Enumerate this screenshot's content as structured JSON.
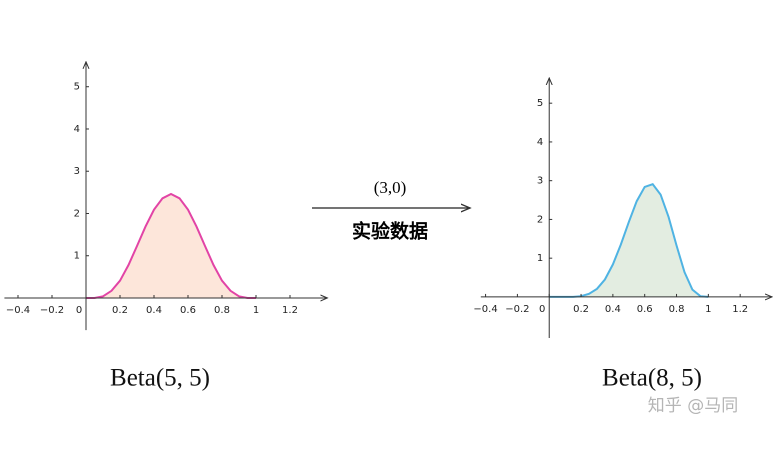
{
  "chart_data": [
    {
      "type": "line",
      "title": "Beta(5, 5)",
      "x": [
        0,
        0.05,
        0.1,
        0.15,
        0.2,
        0.25,
        0.3,
        0.35,
        0.4,
        0.45,
        0.5,
        0.55,
        0.6,
        0.65,
        0.7,
        0.75,
        0.8,
        0.85,
        0.9,
        0.95,
        1
      ],
      "series": [
        {
          "color": "#e244a6",
          "fill_color": "#fde6da",
          "values": [
            0,
            0,
            0.04,
            0.17,
            0.41,
            0.78,
            1.23,
            1.69,
            2.09,
            2.36,
            2.46,
            2.36,
            2.09,
            1.69,
            1.23,
            0.78,
            0.41,
            0.17,
            0.04,
            0,
            0
          ]
        }
      ],
      "xlim": [
        -0.48,
        1.42
      ],
      "ylim": [
        -0.76,
        5.59
      ],
      "xticks": [
        {
          "value": -0.4,
          "label": "−0.4"
        },
        {
          "value": -0.2,
          "label": "−0.2"
        },
        0,
        0.2,
        0.4,
        0.6,
        0.8,
        1,
        1.2
      ],
      "yticks": [
        1,
        2,
        3,
        4,
        5
      ]
    },
    {
      "type": "line",
      "title": "Beta(8, 5)",
      "x": [
        0,
        0.05,
        0.1,
        0.15,
        0.2,
        0.25,
        0.3,
        0.35,
        0.4,
        0.45,
        0.5,
        0.55,
        0.6,
        0.65,
        0.7,
        0.75,
        0.8,
        0.85,
        0.9,
        0.95,
        1
      ],
      "series": [
        {
          "color": "#4fb3e3",
          "fill_color": "#e3ede1",
          "values": [
            0,
            0,
            0,
            0,
            0.02,
            0.08,
            0.21,
            0.45,
            0.84,
            1.35,
            1.93,
            2.47,
            2.84,
            2.91,
            2.64,
            2.06,
            1.33,
            0.64,
            0.19,
            0.02,
            0
          ]
        }
      ],
      "xlim": [
        -0.43,
        1.4
      ],
      "ylim": [
        -1.06,
        5.65
      ],
      "xticks": [
        {
          "value": -0.4,
          "label": "−0.4"
        },
        {
          "value": -0.2,
          "label": "−0.2"
        },
        0,
        0.2,
        0.4,
        0.6,
        0.8,
        1,
        1.2
      ],
      "yticks": [
        1,
        2,
        3,
        4,
        5
      ]
    }
  ],
  "arrow": {
    "top": "(3,0)",
    "bottom": "实验数据"
  },
  "watermark": "知乎 @马同"
}
